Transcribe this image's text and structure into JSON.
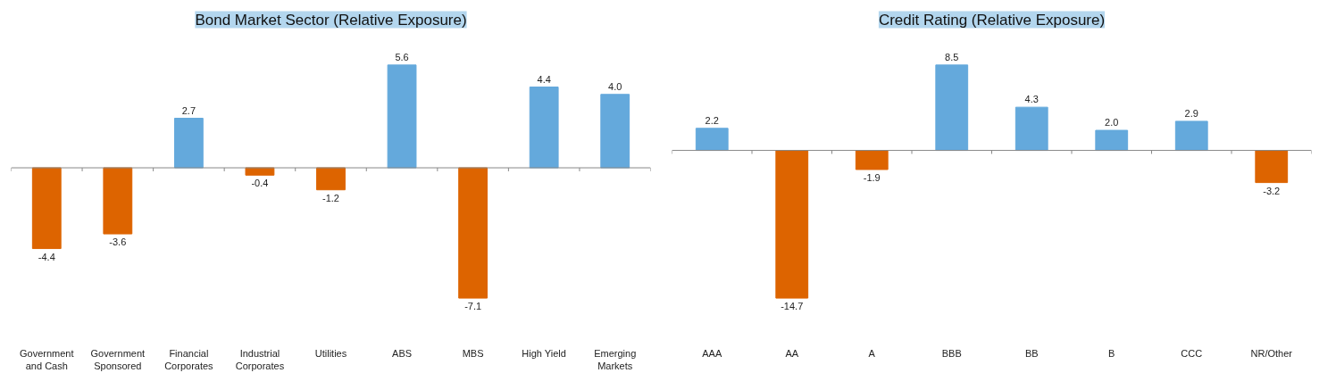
{
  "chart_data": [
    {
      "type": "bar",
      "title": "Bond Market Sector (Relative Exposure)",
      "categories": [
        "Government\nand Cash",
        "Government\nSponsored",
        "Financial\nCorporates",
        "Industrial\nCorporates",
        "Utilities",
        "ABS",
        "MBS",
        "High Yield",
        "Emerging\nMarkets"
      ],
      "values": [
        -4.4,
        -3.6,
        2.7,
        -0.4,
        -1.2,
        5.6,
        -7.1,
        4.4,
        4.0
      ],
      "colors": [
        "#dd6400",
        "#dd6400",
        "#64a9dc",
        "#dd6400",
        "#dd6400",
        "#64a9dc",
        "#dd6400",
        "#64a9dc",
        "#64a9dc"
      ],
      "value_labels": [
        "-4.4",
        "-3.6",
        "2.7",
        "-0.4",
        "-1.2",
        "5.6",
        "-7.1",
        "4.4",
        "4.0"
      ],
      "grid": false
    },
    {
      "type": "bar",
      "title": "Credit Rating (Relative Exposure)",
      "categories": [
        "AAA",
        "AA",
        "A",
        "BBB",
        "BB",
        "B",
        "CCC",
        "NR/Other"
      ],
      "values": [
        2.2,
        -14.7,
        -1.9,
        8.5,
        4.3,
        2.0,
        2.9,
        -3.2
      ],
      "colors": [
        "#64a9dc",
        "#dd6400",
        "#dd6400",
        "#64a9dc",
        "#64a9dc",
        "#64a9dc",
        "#64a9dc",
        "#dd6400"
      ],
      "value_labels": [
        "2.2",
        "-14.7",
        "-1.9",
        "8.5",
        "4.3",
        "2.0",
        "2.9",
        "-3.2"
      ],
      "grid": false
    }
  ]
}
